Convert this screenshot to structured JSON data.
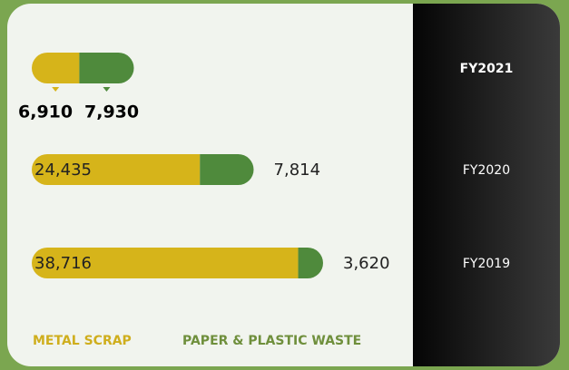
{
  "chart_data": {
    "type": "stacked-bar-horizontal",
    "categories": [
      "FY2021",
      "FY2020",
      "FY2019"
    ],
    "series": [
      {
        "name": "METAL SCRAP",
        "color": "#d6b41a",
        "values": [
          6910,
          24435,
          38716
        ],
        "value_labels": [
          "6,910",
          "24,435",
          "38,716"
        ]
      },
      {
        "name": "PAPER & PLASTIC WASTE",
        "color": "#4f8a3c",
        "values": [
          7930,
          7814,
          3620
        ],
        "value_labels": [
          "7,930",
          "7,814",
          "3,620"
        ]
      }
    ]
  }
}
